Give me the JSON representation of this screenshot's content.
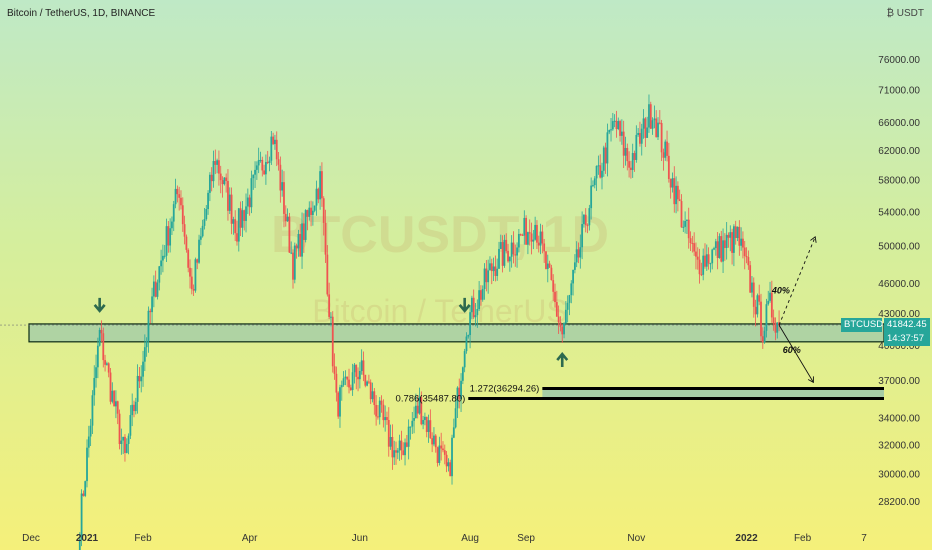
{
  "header": {
    "title": "Bitcoin / TetherUS, 1D, BINANCE",
    "currency": "₿ USDT"
  },
  "price_tag": {
    "symbol": "BTCUSDT",
    "price": "41842.45",
    "countdown": "14:37:57"
  },
  "annotations": {
    "fib_upper": "1.272(36294.26)",
    "fib_lower": "0.786(35487.80)",
    "pct_up": "40%",
    "pct_down": "60%"
  },
  "colors": {
    "bull": "#26a69a",
    "bear": "#ef5350",
    "zone_fill": "#9fc9a8",
    "zone_border": "#0b2a14",
    "tag_bg": "#26a69a",
    "arrow": "#2d6a4f"
  },
  "chart_data": {
    "type": "candlestick",
    "title": "Bitcoin / TetherUS, 1D, BINANCE",
    "watermark": "BTCUSDT, 1D",
    "watermark_sub": "Bitcoin / TetherUS",
    "y_axis": {
      "scale": "log",
      "ylim": [
        26800,
        80000
      ],
      "ticks": [
        28200,
        30000,
        32000,
        34000,
        37000,
        40000,
        43000,
        46000,
        50000,
        54000,
        58000,
        62000,
        66000,
        71000,
        76000
      ]
    },
    "x_axis": {
      "range": [
        "2020-12-01",
        "2022-03-10"
      ],
      "ticks": [
        {
          "label": "Dec",
          "date": "2020-12-01",
          "bold": false
        },
        {
          "label": "2021",
          "date": "2021-01-01",
          "bold": true
        },
        {
          "label": "Feb",
          "date": "2021-02-01",
          "bold": false
        },
        {
          "label": "Apr",
          "date": "2021-04-01",
          "bold": false
        },
        {
          "label": "Jun",
          "date": "2021-06-01",
          "bold": false
        },
        {
          "label": "Aug",
          "date": "2021-08-01",
          "bold": false
        },
        {
          "label": "Sep",
          "date": "2021-09-01",
          "bold": false
        },
        {
          "label": "Nov",
          "date": "2021-11-01",
          "bold": false
        },
        {
          "label": "2022",
          "date": "2022-01-01",
          "bold": true
        },
        {
          "label": "Feb",
          "date": "2022-02-01",
          "bold": false
        },
        {
          "label": "7",
          "date": "2022-03-07",
          "bold": false
        }
      ]
    },
    "price_path": [
      [
        "2020-12-28",
        26800
      ],
      [
        "2021-01-08",
        41000
      ],
      [
        "2021-01-22",
        31000
      ],
      [
        "2021-02-08",
        46000
      ],
      [
        "2021-02-21",
        57000
      ],
      [
        "2021-02-28",
        45000
      ],
      [
        "2021-03-13",
        61000
      ],
      [
        "2021-03-25",
        52000
      ],
      [
        "2021-04-14",
        64000
      ],
      [
        "2021-04-25",
        48000
      ],
      [
        "2021-05-10",
        58000
      ],
      [
        "2021-05-19",
        35000
      ],
      [
        "2021-06-01",
        38000
      ],
      [
        "2021-06-22",
        31000
      ],
      [
        "2021-07-04",
        35000
      ],
      [
        "2021-07-20",
        29800
      ],
      [
        "2021-07-30",
        42000
      ],
      [
        "2021-08-14",
        48000
      ],
      [
        "2021-09-06",
        52700
      ],
      [
        "2021-09-21",
        41000
      ],
      [
        "2021-10-06",
        55000
      ],
      [
        "2021-10-20",
        66000
      ],
      [
        "2021-10-28",
        60000
      ],
      [
        "2021-11-10",
        68000
      ],
      [
        "2021-11-26",
        53500
      ],
      [
        "2021-12-04",
        48000
      ],
      [
        "2021-12-27",
        51000
      ],
      [
        "2022-01-10",
        41500
      ],
      [
        "2022-01-14",
        43600
      ],
      [
        "2022-01-19",
        41842
      ]
    ],
    "support_zone": {
      "from": 40300,
      "to": 41950,
      "start": "2020-12-01"
    },
    "fib_zone": {
      "from": 35487.8,
      "to": 36294.26,
      "start": "2021-09-10"
    },
    "fib_levels": [
      {
        "label": "1.272(36294.26)",
        "value": 36294.26,
        "start": "2021-09-10"
      },
      {
        "label": "0.786(35487.80)",
        "value": 35487.8,
        "start": "2021-07-31"
      }
    ],
    "scenarios": [
      {
        "label": "40%",
        "from": [
          "2022-01-19",
          41842
        ],
        "to": [
          "2022-02-08",
          51000
        ],
        "style": "dashed"
      },
      {
        "label": "60%",
        "from": [
          "2022-01-19",
          41842
        ],
        "to": [
          "2022-02-07",
          36800
        ],
        "style": "solid"
      }
    ],
    "markers": [
      {
        "type": "arrow-down",
        "date": "2021-01-08",
        "value": 43100
      },
      {
        "type": "arrow-down",
        "date": "2021-07-29",
        "value": 43100
      },
      {
        "type": "arrow-up",
        "date": "2021-09-21",
        "value": 39300
      }
    ],
    "last_price": 41842.45,
    "grid": false,
    "legend": "none"
  }
}
